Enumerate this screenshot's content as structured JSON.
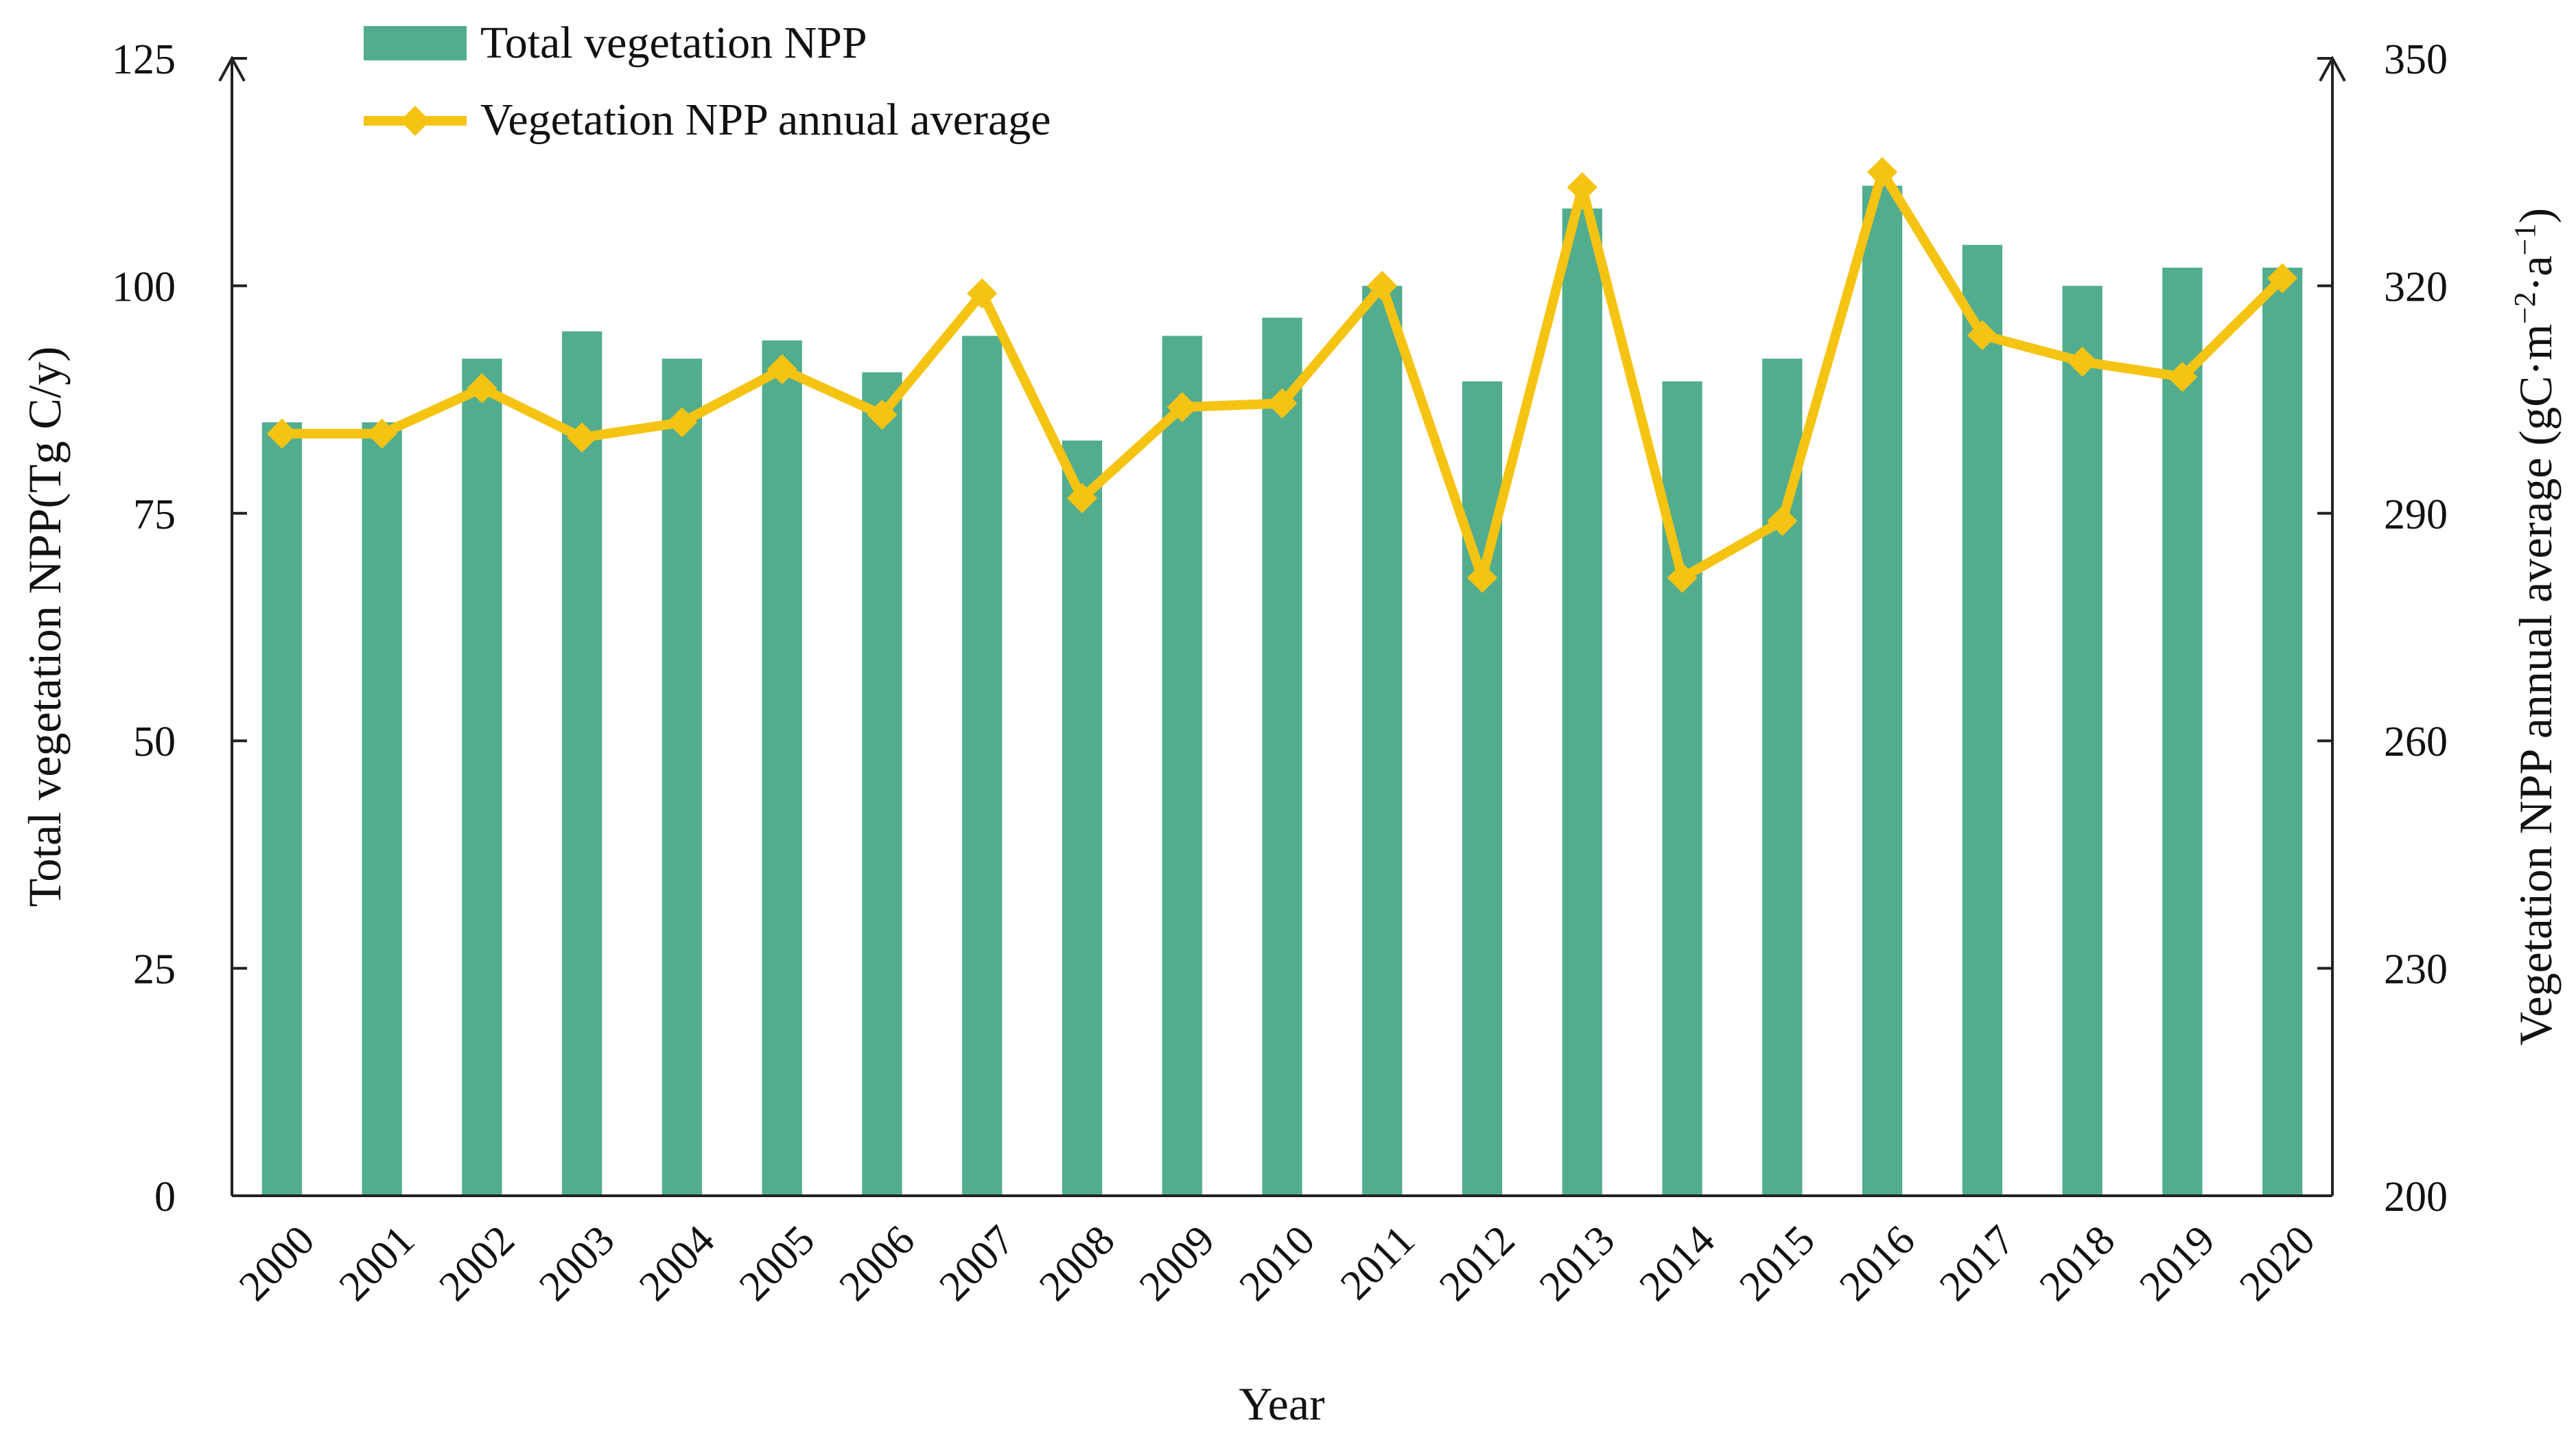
{
  "chart_data": {
    "type": "bar+line",
    "categories": [
      "2000",
      "2001",
      "2002",
      "2003",
      "2004",
      "2005",
      "2006",
      "2007",
      "2008",
      "2009",
      "2010",
      "2011",
      "2012",
      "2013",
      "2014",
      "2015",
      "2016",
      "2017",
      "2018",
      "2019",
      "2020"
    ],
    "series": [
      {
        "name": "Total vegetation NPP",
        "type": "bar",
        "axis": "left",
        "color": "#52ad8f",
        "values": [
          85,
          85,
          92,
          95,
          92,
          94,
          90.5,
          94.5,
          83,
          94.5,
          96.5,
          100,
          89.5,
          108.5,
          89.5,
          92,
          111,
          104.5,
          100,
          102,
          102
        ]
      },
      {
        "name": "Vegetation NPP annual average",
        "type": "line",
        "axis": "right",
        "color": "#f5c312",
        "values": [
          300.5,
          300.5,
          306.5,
          300,
          302,
          309,
          303,
          319,
          292,
          304,
          304.5,
          320,
          281.5,
          333,
          281.5,
          289,
          335,
          313.5,
          310,
          308,
          321
        ]
      }
    ],
    "xlabel": "Year",
    "ylabel_left": "Total vegetation NPP(Tg C/y)",
    "ylabel_right_main": "Vegetation NPP annual average (gC·m",
    "ylabel_right_sup1": "−2",
    "ylabel_right_mid": "·a",
    "ylabel_right_sup2": "−1",
    "ylabel_right_end": ")",
    "ylim_left": [
      0,
      125
    ],
    "yticks_left": [
      "0",
      "25",
      "50",
      "75",
      "100",
      "125"
    ],
    "ylim_right": [
      200,
      350
    ],
    "yticks_right": [
      "200",
      "230",
      "260",
      "290",
      "320",
      "350"
    ],
    "legend": [
      "Total vegetation NPP",
      "Vegetation NPP annual average"
    ],
    "legend_position": "top-left",
    "grid": false
  }
}
